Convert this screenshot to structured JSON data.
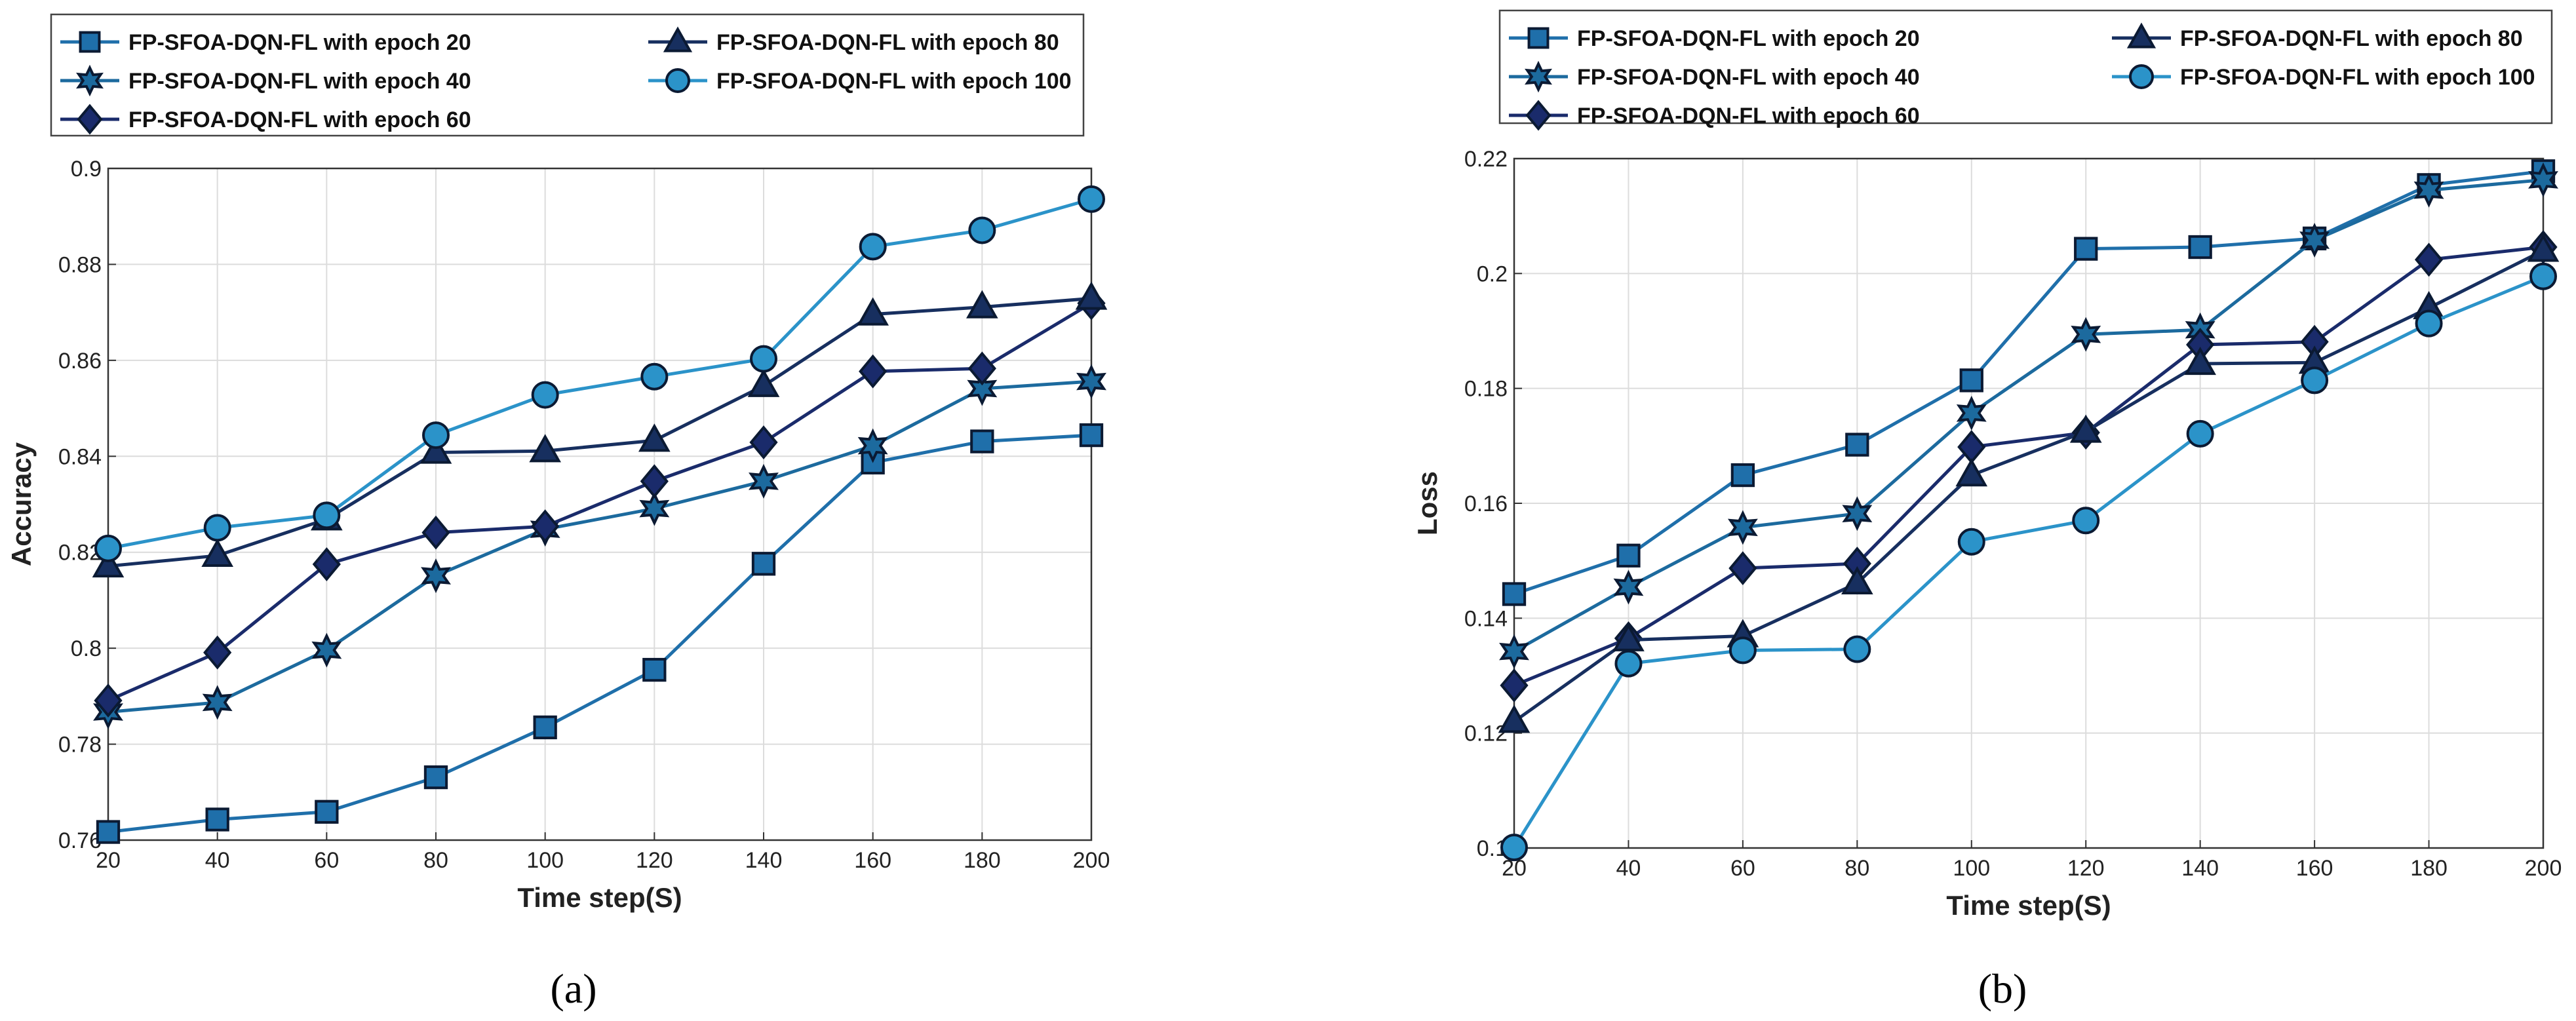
{
  "chart_data": [
    {
      "type": "line",
      "panel_label": "(a)",
      "title": "",
      "xlabel": "Time step(S)",
      "ylabel": "Accuracy",
      "x": [
        20,
        40,
        60,
        80,
        100,
        120,
        140,
        160,
        180,
        200
      ],
      "xlim": [
        20,
        200
      ],
      "ylim": [
        0.76,
        0.9
      ],
      "xticks": [
        20,
        40,
        60,
        80,
        100,
        120,
        140,
        160,
        180,
        200
      ],
      "yticks": [
        0.76,
        0.78,
        0.8,
        0.82,
        0.84,
        0.86,
        0.88,
        0.9
      ],
      "grid": true,
      "legend_location": "above plot",
      "series": [
        {
          "name": "FP-SFOA-DQN-FL with epoch 20",
          "marker": "square",
          "color": "#1f6faa",
          "values": [
            0.7617,
            0.7643,
            0.7659,
            0.7731,
            0.7835,
            0.7955,
            0.8176,
            0.8387,
            0.8431,
            0.8444
          ]
        },
        {
          "name": "FP-SFOA-DQN-FL with epoch 40",
          "marker": "hexagram",
          "color": "#1c6a9e",
          "values": [
            0.7867,
            0.7887,
            0.7996,
            0.8151,
            0.8248,
            0.8291,
            0.8348,
            0.8422,
            0.8541,
            0.8556
          ]
        },
        {
          "name": "FP-SFOA-DQN-FL with epoch 60",
          "marker": "diamond",
          "color": "#1a2b6b",
          "values": [
            0.7891,
            0.7991,
            0.8175,
            0.8241,
            0.8254,
            0.8348,
            0.8429,
            0.8577,
            0.8583,
            0.8719
          ]
        },
        {
          "name": "FP-SFOA-DQN-FL with epoch 80",
          "marker": "triangle",
          "color": "#172f5f",
          "values": [
            0.8171,
            0.8193,
            0.8269,
            0.8408,
            0.8411,
            0.8433,
            0.8547,
            0.8696,
            0.8711,
            0.8729
          ]
        },
        {
          "name": "FP-SFOA-DQN-FL with epoch 100",
          "marker": "circle",
          "color": "#2b93c9",
          "values": [
            0.8208,
            0.8251,
            0.8277,
            0.8444,
            0.8528,
            0.8566,
            0.8603,
            0.8837,
            0.8871,
            0.8936
          ]
        }
      ]
    },
    {
      "type": "line",
      "panel_label": "(b)",
      "title": "",
      "xlabel": "Time step(S)",
      "ylabel": "Loss",
      "x": [
        20,
        40,
        60,
        80,
        100,
        120,
        140,
        160,
        180,
        200
      ],
      "xlim": [
        20,
        200
      ],
      "ylim": [
        0.1,
        0.22
      ],
      "xticks": [
        20,
        40,
        60,
        80,
        100,
        120,
        140,
        160,
        180,
        200
      ],
      "yticks": [
        0.1,
        0.12,
        0.14,
        0.16,
        0.18,
        0.2,
        0.22
      ],
      "grid": true,
      "legend_location": "above plot",
      "series": [
        {
          "name": "FP-SFOA-DQN-FL with epoch 20",
          "marker": "square",
          "color": "#1f6faa",
          "values": [
            0.1442,
            0.1509,
            0.1649,
            0.1702,
            0.1814,
            0.2043,
            0.2046,
            0.2061,
            0.2154,
            0.2178
          ]
        },
        {
          "name": "FP-SFOA-DQN-FL with epoch 40",
          "marker": "hexagram",
          "color": "#1c6a9e",
          "values": [
            0.1342,
            0.1454,
            0.1558,
            0.1582,
            0.1757,
            0.1894,
            0.1902,
            0.2058,
            0.2145,
            0.2163
          ]
        },
        {
          "name": "FP-SFOA-DQN-FL with epoch 60",
          "marker": "diamond",
          "color": "#1a2b6b",
          "values": [
            0.1283,
            0.1365,
            0.1487,
            0.1495,
            0.1698,
            0.1723,
            0.1876,
            0.1881,
            0.2024,
            0.2046
          ]
        },
        {
          "name": "FP-SFOA-DQN-FL with epoch 80",
          "marker": "triangle",
          "color": "#172f5f",
          "values": [
            0.122,
            0.1362,
            0.1369,
            0.1461,
            0.1649,
            0.1725,
            0.1843,
            0.1845,
            0.194,
            0.204
          ]
        },
        {
          "name": "FP-SFOA-DQN-FL with epoch 100",
          "marker": "circle",
          "color": "#2b93c9",
          "values": [
            0.1001,
            0.1321,
            0.1344,
            0.1346,
            0.1533,
            0.157,
            0.1721,
            0.1814,
            0.1913,
            0.1995
          ]
        }
      ]
    }
  ]
}
